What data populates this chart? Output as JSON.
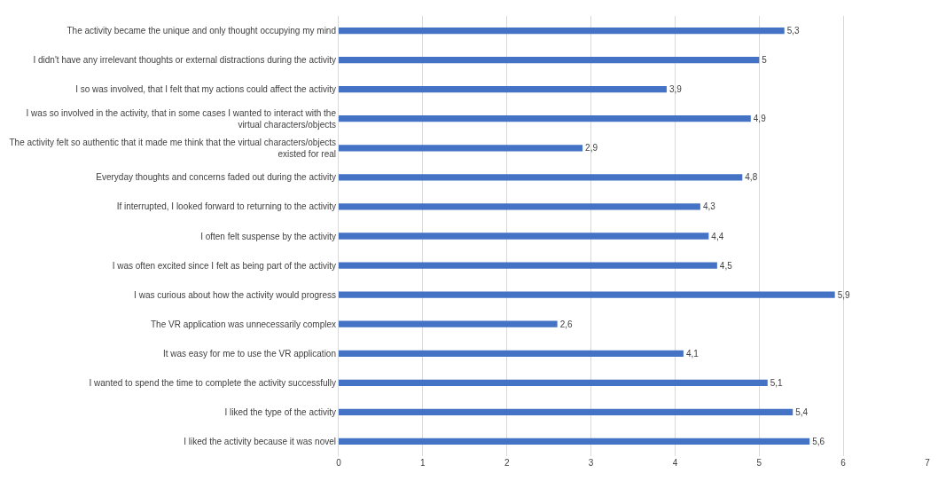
{
  "chart_data": {
    "type": "bar",
    "orientation": "horizontal",
    "categories": [
      "The activity became the unique and only thought occupying my mind",
      "I didn't have any irrelevant thoughts or external distractions during the activity",
      "I so was involved, that I felt that my actions could affect the activity",
      "I was so involved in the activity, that in some cases I wanted to interact with the virtual characters/objects",
      "The activity felt so authentic that it made me think that the virtual characters/objects existed for real",
      "Everyday thoughts and concerns faded out during the activity",
      "If interrupted, I looked forward to returning to the activity",
      "I often felt suspense by the activity",
      "I was often excited since I felt as being part of the activity",
      "I was curious about how the activity would progress",
      "The VR application was unnecessarily complex",
      "It was easy for me to use the VR application",
      "I wanted to spend the time to complete the activity successfully",
      "I liked the type of the activity",
      "I liked the activity because it was novel"
    ],
    "values": [
      5.3,
      5,
      3.9,
      4.9,
      2.9,
      4.8,
      4.3,
      4.4,
      4.5,
      5.9,
      2.6,
      4.1,
      5.1,
      5.4,
      5.6
    ],
    "value_labels": [
      "5,3",
      "5",
      "3,9",
      "4,9",
      "2,9",
      "4,8",
      "4,3",
      "4,4",
      "4,5",
      "5,9",
      "2,6",
      "4,1",
      "5,1",
      "5,4",
      "5,6"
    ],
    "color": "#4472c4",
    "xlim": [
      0,
      7
    ],
    "xticks": [
      0,
      1,
      2,
      3,
      4,
      5,
      6,
      7
    ],
    "grid": "x"
  }
}
